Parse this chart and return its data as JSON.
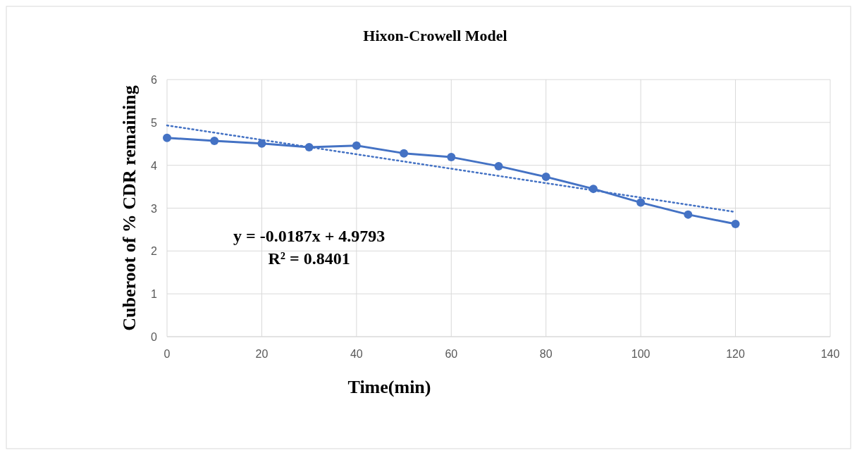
{
  "chart_data": {
    "type": "line",
    "title": "Hixon-Crowell Model",
    "xlabel": "Time(min)",
    "ylabel": "Cuberoot of % CDR remaining",
    "x": [
      0,
      10,
      20,
      30,
      40,
      50,
      60,
      70,
      80,
      90,
      100,
      110,
      120
    ],
    "series": [
      {
        "color": "#4472c4",
        "values": [
          4.64,
          4.57,
          4.51,
          4.42,
          4.46,
          4.28,
          4.19,
          3.98,
          3.73,
          3.45,
          3.13,
          2.85,
          2.63
        ],
        "marker": "circle",
        "line_style": "solid"
      },
      {
        "type": "line",
        "color": "#4472c4",
        "x": [
          0,
          120
        ],
        "values": [
          4.93,
          2.91
        ],
        "marker": "none",
        "line_style": "dotted"
      }
    ],
    "xlim": [
      0,
      140
    ],
    "xticks": [
      0,
      20,
      40,
      60,
      80,
      100,
      120,
      140
    ],
    "ylim": [
      0,
      6
    ],
    "yticks": [
      0,
      1,
      2,
      3,
      4,
      5,
      6
    ],
    "grid": true,
    "annotations": [
      "y = -0.0187x + 4.9793",
      "R² = 0.8401"
    ]
  }
}
